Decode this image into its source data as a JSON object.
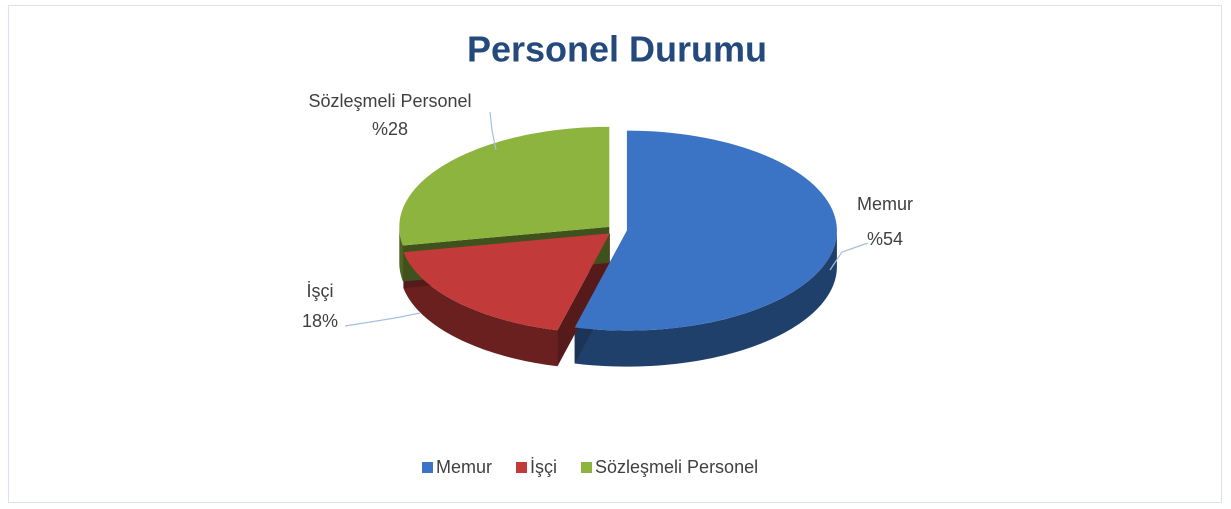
{
  "chart_data": {
    "type": "pie",
    "title": "Personel Durumu",
    "categories": [
      "Memur",
      "İşçi",
      "Sözleşmeli Personel"
    ],
    "values": [
      54,
      18,
      28
    ],
    "value_labels": [
      "%54",
      "18%",
      "%28"
    ],
    "colors": [
      "#3b74c4",
      "#c23a3a",
      "#8db43e"
    ],
    "legend": "bottom"
  }
}
